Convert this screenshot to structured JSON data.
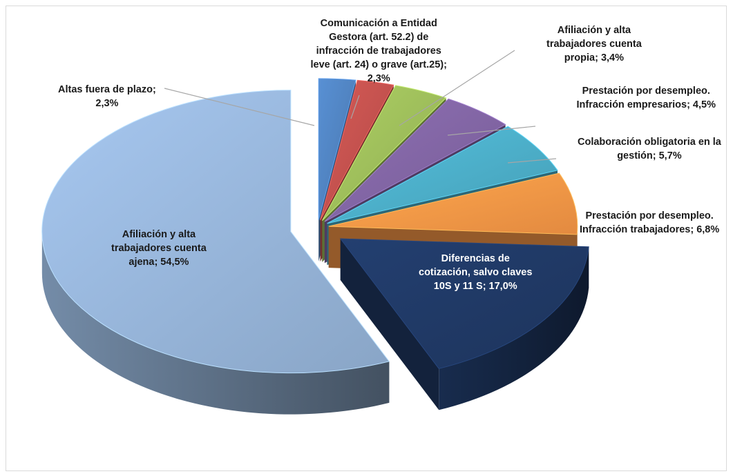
{
  "chart_data": {
    "type": "pie",
    "style": "3d-exploded",
    "slices": [
      {
        "lines": [
          "Altas fuera de plazo;",
          "2,3%"
        ],
        "value": 2.3,
        "color": "#4f81bd"
      },
      {
        "lines": [
          "Comunicación a Entidad",
          "Gestora (art. 52.2) de",
          "infracción de trabajadores",
          "leve (art. 24) o grave (art.25);",
          "2,3%"
        ],
        "value": 2.3,
        "color": "#c0504d"
      },
      {
        "lines": [
          "Afiliación y alta",
          "trabajadores cuenta",
          "propia; 3,4%"
        ],
        "value": 3.4,
        "color": "#9bbb59"
      },
      {
        "lines": [
          "Prestación por desempleo.",
          "Infracción empresarios; 4,5%"
        ],
        "value": 4.5,
        "color": "#8064a2"
      },
      {
        "lines": [
          "Colaboración obligatoria en la",
          "gestión; 5,7%"
        ],
        "value": 5.7,
        "color": "#4bacc6"
      },
      {
        "lines": [
          "Prestación por desempleo.",
          "Infracción trabajadores; 6,8%"
        ],
        "value": 6.8,
        "color": "#f79646"
      },
      {
        "lines": [
          "Diferencias de",
          "cotización, salvo claves",
          "10S y 11 S; 17,0%"
        ],
        "value": 17.0,
        "color": "#1f3864"
      },
      {
        "lines": [
          "Afiliación y alta",
          "trabajadores cuenta",
          "ajena; 54,5%"
        ],
        "value": 54.5,
        "color": "#95b3d7"
      }
    ]
  }
}
